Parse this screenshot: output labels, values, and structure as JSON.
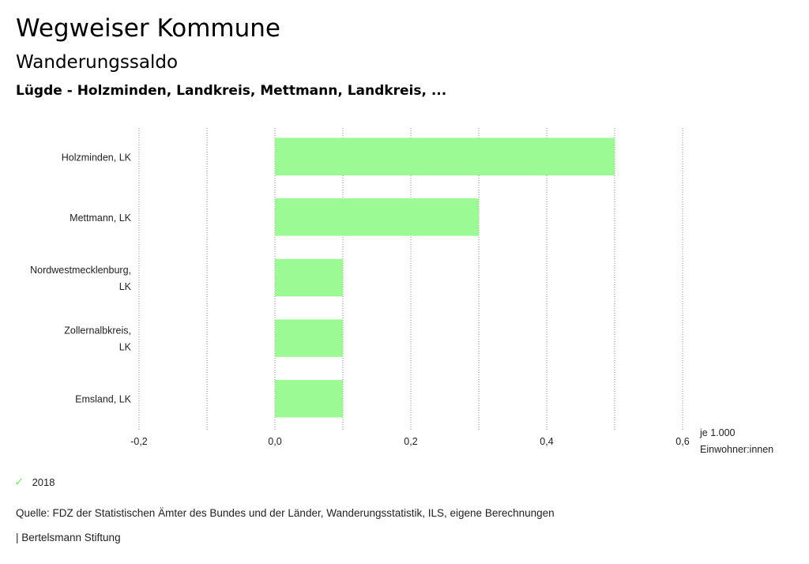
{
  "header": {
    "title": "Wegweiser Kommune",
    "subtitle": "Wanderungssaldo",
    "selection": "Lügde - Holzminden, Landkreis, Mettmann, Landkreis, ..."
  },
  "chart_data": {
    "type": "bar",
    "orientation": "horizontal",
    "categories": [
      [
        "Holzminden, LK"
      ],
      [
        "Mettmann, LK"
      ],
      [
        "Nordwestmecklenburg,",
        "LK"
      ],
      [
        "Zollernalbkreis,",
        "LK"
      ],
      [
        "Emsland, LK"
      ]
    ],
    "series": [
      {
        "name": "2018",
        "values": [
          0.5,
          0.3,
          0.1,
          0.1,
          0.1
        ],
        "color": "#9bfa94"
      }
    ],
    "xlim": [
      -0.2,
      0.6
    ],
    "xticks": [
      -0.2,
      -0.1,
      0.0,
      0.1,
      0.2,
      0.3,
      0.4,
      0.5,
      0.6
    ],
    "xtick_labels": [
      "-0,2",
      "",
      "0,0",
      "",
      "0,2",
      "",
      "0,4",
      "",
      "0,6"
    ],
    "unit_label": [
      "je 1.000",
      "Einwohner:innen"
    ],
    "grid": "vertical-dotted"
  },
  "legend": {
    "items": [
      {
        "label": "2018",
        "color": "#7ee47a",
        "icon": "check-icon"
      }
    ]
  },
  "footer": {
    "source": "Quelle: FDZ der Statistischen Ämter des Bundes und der Länder, Wanderungsstatistik, ILS, eigene Berechnungen",
    "brand": "| Bertelsmann Stiftung"
  }
}
